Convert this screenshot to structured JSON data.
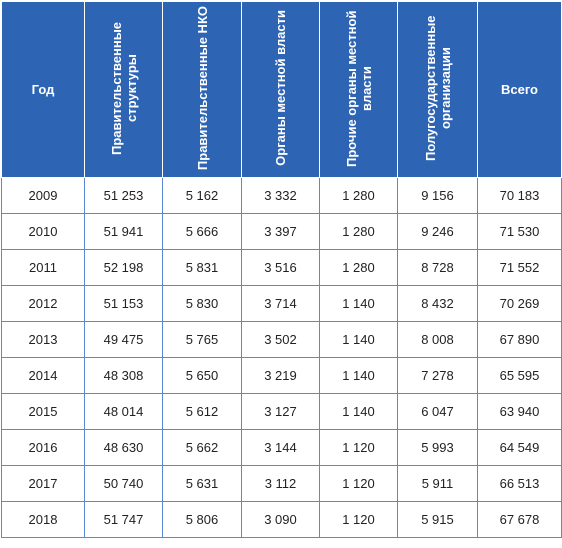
{
  "table": {
    "headers": {
      "year": "Год",
      "gov": "Правительственные структуры",
      "gov_ngo": "Правительственные НКО",
      "local": "Органы местной власти",
      "other_local": "Прочие органы местной власти",
      "semi_gov": "Полугосударственные организации",
      "total": "Всего"
    },
    "rows": [
      [
        "2009",
        "51 253",
        "5 162",
        "3 332",
        "1 280",
        "9 156",
        "70 183"
      ],
      [
        "2010",
        "51 941",
        "5 666",
        "3 397",
        "1 280",
        "9 246",
        "71 530"
      ],
      [
        "2011",
        "52 198",
        "5 831",
        "3 516",
        "1 280",
        "8 728",
        "71 552"
      ],
      [
        "2012",
        "51 153",
        "5 830",
        "3 714",
        "1 140",
        "8 432",
        "70 269"
      ],
      [
        "2013",
        "49 475",
        "5 765",
        "3 502",
        "1 140",
        "8 008",
        "67 890"
      ],
      [
        "2014",
        "48 308",
        "5 650",
        "3 219",
        "1 140",
        "7 278",
        "65 595"
      ],
      [
        "2015",
        "48 014",
        "5 612",
        "3 127",
        "1 140",
        "6 047",
        "63 940"
      ],
      [
        "2016",
        "48 630",
        "5 662",
        "3 144",
        "1 120",
        "5 993",
        "64 549"
      ],
      [
        "2017",
        "50 740",
        "5 631",
        "3 112",
        "1 120",
        "5 911",
        "66 513"
      ],
      [
        "2018",
        "51 747",
        "5 806",
        "3 090",
        "1 120",
        "5 915",
        "67 678"
      ]
    ],
    "colors": {
      "header_bg": "#2d64b4",
      "header_text": "#ffffff",
      "border": "#5a8ad0"
    }
  }
}
